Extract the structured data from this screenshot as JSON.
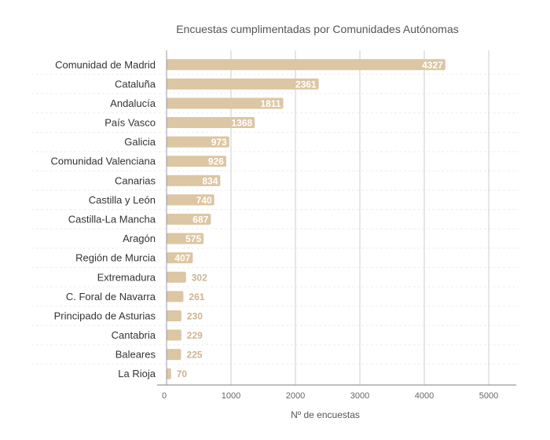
{
  "chart_data": {
    "type": "bar",
    "orientation": "horizontal",
    "title": "Encuestas cumplimentadas por Comunidades Autónomas",
    "xlabel": "Nº de encuestas",
    "ylabel": "",
    "xlim": [
      0,
      5000
    ],
    "xticks": [
      "0",
      "1000",
      "2000",
      "3000",
      "4000",
      "5000"
    ],
    "grid": true,
    "bar_color": "#dcc6a3",
    "categories": [
      "Comunidad de Madrid",
      "Cataluña",
      "Andalucía",
      "País Vasco",
      "Galicia",
      "Comunidad Valenciana",
      "Canarias",
      "Castilla y León",
      "Castilla-La Mancha",
      "Aragón",
      "Región de Murcia",
      "Extremadura",
      "C. Foral de Navarra",
      "Principado de Asturias",
      "Cantabria",
      "Baleares",
      "La Rioja"
    ],
    "values": [
      4327,
      2361,
      1811,
      1368,
      973,
      926,
      834,
      740,
      687,
      575,
      407,
      302,
      261,
      230,
      229,
      225,
      70
    ]
  }
}
